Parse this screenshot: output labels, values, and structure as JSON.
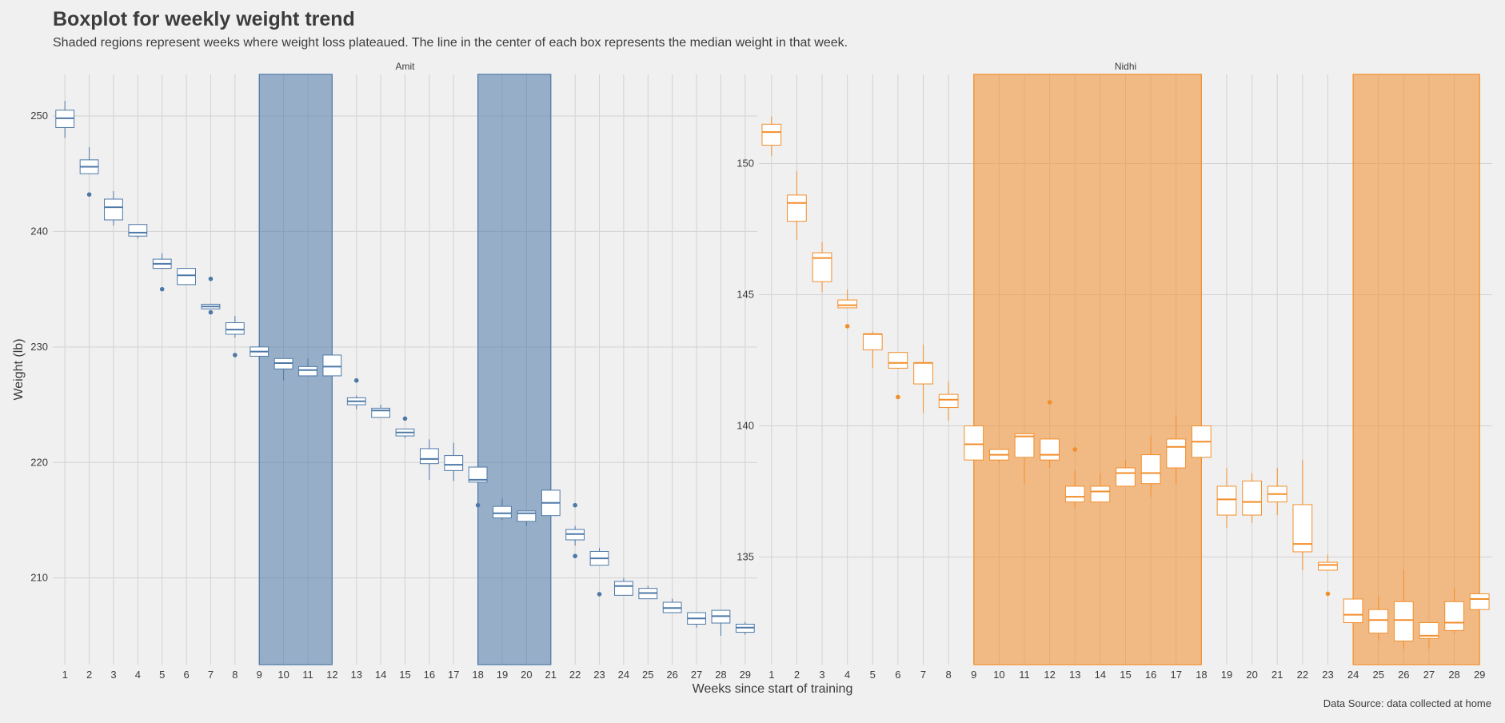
{
  "title": "Boxplot for weekly weight trend",
  "subtitle": "Shaded regions represent weeks where weight loss plateaued. The line in the center of each box represents the median weight in that week.",
  "caption": "Data Source: data collected at home",
  "chart_data": {
    "type": "boxplot",
    "xlabel": "Weeks since start of training",
    "ylabel": "Weight (lb)",
    "x_categories": [
      1,
      2,
      3,
      4,
      5,
      6,
      7,
      8,
      9,
      10,
      11,
      12,
      13,
      14,
      15,
      16,
      17,
      18,
      19,
      20,
      21,
      22,
      23,
      24,
      25,
      26,
      27,
      28,
      29
    ],
    "grid": true,
    "panels": [
      {
        "name": "Amit",
        "color": "#4e79a7",
        "shade_color": "#4e79a7",
        "ylim": [
          202.5,
          253.6
        ],
        "yticks": [
          210,
          220,
          230,
          240,
          250
        ],
        "plateaus": [
          [
            9,
            12
          ],
          [
            18,
            21
          ]
        ],
        "boxes": [
          {
            "week": 1,
            "q1": 249.0,
            "median": 249.8,
            "q3": 250.5,
            "lo": 248.1,
            "hi": 251.3,
            "outliers": []
          },
          {
            "week": 2,
            "q1": 245.0,
            "median": 245.6,
            "q3": 246.2,
            "lo": 245.0,
            "hi": 247.3,
            "outliers": [
              243.2
            ]
          },
          {
            "week": 3,
            "q1": 241.0,
            "median": 242.1,
            "q3": 242.8,
            "lo": 240.5,
            "hi": 243.5,
            "outliers": []
          },
          {
            "week": 4,
            "q1": 239.6,
            "median": 239.9,
            "q3": 240.6,
            "lo": 239.4,
            "hi": 240.6,
            "outliers": []
          },
          {
            "week": 5,
            "q1": 236.8,
            "median": 237.2,
            "q3": 237.6,
            "lo": 236.8,
            "hi": 238.1,
            "outliers": [
              235.0
            ]
          },
          {
            "week": 6,
            "q1": 235.4,
            "median": 236.2,
            "q3": 236.8,
            "lo": 235.4,
            "hi": 236.8,
            "outliers": []
          },
          {
            "week": 7,
            "q1": 233.3,
            "median": 233.5,
            "q3": 233.7,
            "lo": 233.3,
            "hi": 233.7,
            "outliers": [
              235.9,
              233.0
            ]
          },
          {
            "week": 8,
            "q1": 231.1,
            "median": 231.5,
            "q3": 232.1,
            "lo": 230.8,
            "hi": 232.7,
            "outliers": [
              229.3
            ]
          },
          {
            "week": 9,
            "q1": 229.2,
            "median": 229.6,
            "q3": 230.0,
            "lo": 228.9,
            "hi": 230.2,
            "outliers": []
          },
          {
            "week": 10,
            "q1": 228.1,
            "median": 228.6,
            "q3": 229.0,
            "lo": 227.1,
            "hi": 229.0,
            "outliers": []
          },
          {
            "week": 11,
            "q1": 227.5,
            "median": 228.0,
            "q3": 228.3,
            "lo": 227.5,
            "hi": 229.0,
            "outliers": []
          },
          {
            "week": 12,
            "q1": 227.5,
            "median": 228.3,
            "q3": 229.3,
            "lo": 227.5,
            "hi": 229.3,
            "outliers": []
          },
          {
            "week": 13,
            "q1": 225.0,
            "median": 225.3,
            "q3": 225.6,
            "lo": 224.6,
            "hi": 225.8,
            "outliers": [
              227.1
            ]
          },
          {
            "week": 14,
            "q1": 223.9,
            "median": 224.5,
            "q3": 224.7,
            "lo": 223.9,
            "hi": 225.0,
            "outliers": []
          },
          {
            "week": 15,
            "q1": 222.3,
            "median": 222.6,
            "q3": 222.9,
            "lo": 222.1,
            "hi": 222.9,
            "outliers": [
              223.8
            ]
          },
          {
            "week": 16,
            "q1": 219.9,
            "median": 220.3,
            "q3": 221.2,
            "lo": 218.5,
            "hi": 222.0,
            "outliers": []
          },
          {
            "week": 17,
            "q1": 219.3,
            "median": 219.8,
            "q3": 220.6,
            "lo": 218.4,
            "hi": 221.7,
            "outliers": []
          },
          {
            "week": 18,
            "q1": 218.3,
            "median": 218.5,
            "q3": 219.6,
            "lo": 218.3,
            "hi": 220.2,
            "outliers": [
              216.3
            ]
          },
          {
            "week": 19,
            "q1": 215.2,
            "median": 215.6,
            "q3": 216.2,
            "lo": 215.0,
            "hi": 216.9,
            "outliers": []
          },
          {
            "week": 20,
            "q1": 214.9,
            "median": 215.6,
            "q3": 215.8,
            "lo": 214.5,
            "hi": 215.8,
            "outliers": []
          },
          {
            "week": 21,
            "q1": 215.4,
            "median": 216.5,
            "q3": 217.6,
            "lo": 215.4,
            "hi": 217.6,
            "outliers": []
          },
          {
            "week": 22,
            "q1": 213.3,
            "median": 213.8,
            "q3": 214.2,
            "lo": 212.8,
            "hi": 214.5,
            "outliers": [
              216.3,
              211.9
            ]
          },
          {
            "week": 23,
            "q1": 211.1,
            "median": 211.7,
            "q3": 212.3,
            "lo": 211.1,
            "hi": 212.6,
            "outliers": [
              208.6
            ]
          },
          {
            "week": 24,
            "q1": 208.5,
            "median": 209.3,
            "q3": 209.7,
            "lo": 208.5,
            "hi": 210.0,
            "outliers": []
          },
          {
            "week": 25,
            "q1": 208.2,
            "median": 208.7,
            "q3": 209.1,
            "lo": 208.2,
            "hi": 209.3,
            "outliers": []
          },
          {
            "week": 26,
            "q1": 207.0,
            "median": 207.4,
            "q3": 207.9,
            "lo": 207.0,
            "hi": 208.2,
            "outliers": []
          },
          {
            "week": 27,
            "q1": 206.0,
            "median": 206.5,
            "q3": 207.0,
            "lo": 205.7,
            "hi": 207.0,
            "outliers": []
          },
          {
            "week": 28,
            "q1": 206.1,
            "median": 206.7,
            "q3": 207.2,
            "lo": 205.0,
            "hi": 207.2,
            "outliers": []
          },
          {
            "week": 29,
            "q1": 205.3,
            "median": 205.7,
            "q3": 206.0,
            "lo": 205.1,
            "hi": 206.2,
            "outliers": []
          }
        ]
      },
      {
        "name": "Nidhi",
        "color": "#f28e2b",
        "shade_color": "#f28e2b",
        "ylim": [
          130.9,
          153.4
        ],
        "yticks": [
          135,
          140,
          145,
          150
        ],
        "plateaus": [
          [
            9,
            18
          ],
          [
            24,
            29
          ]
        ],
        "boxes": [
          {
            "week": 1,
            "q1": 150.7,
            "median": 151.2,
            "q3": 151.5,
            "lo": 150.3,
            "hi": 151.8,
            "outliers": []
          },
          {
            "week": 2,
            "q1": 147.8,
            "median": 148.5,
            "q3": 148.8,
            "lo": 147.1,
            "hi": 149.7,
            "outliers": []
          },
          {
            "week": 3,
            "q1": 145.5,
            "median": 146.4,
            "q3": 146.6,
            "lo": 145.1,
            "hi": 147.0,
            "outliers": []
          },
          {
            "week": 4,
            "q1": 144.5,
            "median": 144.6,
            "q3": 144.8,
            "lo": 144.5,
            "hi": 145.2,
            "outliers": [
              143.8
            ]
          },
          {
            "week": 5,
            "q1": 142.9,
            "median": 143.5,
            "q3": 143.5,
            "lo": 142.2,
            "hi": 143.6,
            "outliers": []
          },
          {
            "week": 6,
            "q1": 142.2,
            "median": 142.4,
            "q3": 142.8,
            "lo": 142.2,
            "hi": 142.8,
            "outliers": [
              141.1
            ]
          },
          {
            "week": 7,
            "q1": 141.6,
            "median": 142.4,
            "q3": 142.4,
            "lo": 140.5,
            "hi": 143.1,
            "outliers": []
          },
          {
            "week": 8,
            "q1": 140.7,
            "median": 141.0,
            "q3": 141.2,
            "lo": 140.2,
            "hi": 141.7,
            "outliers": []
          },
          {
            "week": 9,
            "q1": 138.7,
            "median": 139.3,
            "q3": 140.0,
            "lo": 138.7,
            "hi": 140.0,
            "outliers": []
          },
          {
            "week": 10,
            "q1": 138.7,
            "median": 138.9,
            "q3": 139.1,
            "lo": 138.6,
            "hi": 139.1,
            "outliers": []
          },
          {
            "week": 11,
            "q1": 138.8,
            "median": 139.6,
            "q3": 139.7,
            "lo": 137.8,
            "hi": 139.7,
            "outliers": []
          },
          {
            "week": 12,
            "q1": 138.7,
            "median": 138.9,
            "q3": 139.5,
            "lo": 138.4,
            "hi": 139.5,
            "outliers": [
              140.9
            ]
          },
          {
            "week": 13,
            "q1": 137.1,
            "median": 137.3,
            "q3": 137.7,
            "lo": 136.9,
            "hi": 138.3,
            "outliers": [
              139.1
            ]
          },
          {
            "week": 14,
            "q1": 137.1,
            "median": 137.5,
            "q3": 137.7,
            "lo": 137.1,
            "hi": 138.2,
            "outliers": []
          },
          {
            "week": 15,
            "q1": 137.7,
            "median": 138.2,
            "q3": 138.4,
            "lo": 137.7,
            "hi": 138.7,
            "outliers": []
          },
          {
            "week": 16,
            "q1": 137.8,
            "median": 138.2,
            "q3": 138.9,
            "lo": 137.3,
            "hi": 139.6,
            "outliers": []
          },
          {
            "week": 17,
            "q1": 138.4,
            "median": 139.2,
            "q3": 139.5,
            "lo": 137.8,
            "hi": 140.4,
            "outliers": []
          },
          {
            "week": 18,
            "q1": 138.8,
            "median": 139.4,
            "q3": 140.0,
            "lo": 138.6,
            "hi": 140.0,
            "outliers": []
          },
          {
            "week": 19,
            "q1": 136.6,
            "median": 137.2,
            "q3": 137.7,
            "lo": 136.1,
            "hi": 138.4,
            "outliers": []
          },
          {
            "week": 20,
            "q1": 136.6,
            "median": 137.1,
            "q3": 137.9,
            "lo": 136.3,
            "hi": 138.2,
            "outliers": []
          },
          {
            "week": 21,
            "q1": 137.1,
            "median": 137.4,
            "q3": 137.7,
            "lo": 136.6,
            "hi": 138.4,
            "outliers": []
          },
          {
            "week": 22,
            "q1": 135.2,
            "median": 135.5,
            "q3": 137.0,
            "lo": 134.5,
            "hi": 138.7,
            "outliers": []
          },
          {
            "week": 23,
            "q1": 134.5,
            "median": 134.7,
            "q3": 134.8,
            "lo": 134.5,
            "hi": 135.1,
            "outliers": [
              133.6
            ]
          },
          {
            "week": 24,
            "q1": 132.5,
            "median": 132.8,
            "q3": 133.4,
            "lo": 132.3,
            "hi": 133.4,
            "outliers": []
          },
          {
            "week": 25,
            "q1": 132.1,
            "median": 132.6,
            "q3": 133.0,
            "lo": 131.8,
            "hi": 133.5,
            "outliers": []
          },
          {
            "week": 26,
            "q1": 131.8,
            "median": 132.6,
            "q3": 133.3,
            "lo": 131.5,
            "hi": 134.5,
            "outliers": []
          },
          {
            "week": 27,
            "q1": 131.9,
            "median": 132.0,
            "q3": 132.5,
            "lo": 131.5,
            "hi": 132.5,
            "outliers": []
          },
          {
            "week": 28,
            "q1": 132.2,
            "median": 132.5,
            "q3": 133.3,
            "lo": 132.1,
            "hi": 133.8,
            "outliers": []
          },
          {
            "week": 29,
            "q1": 133.0,
            "median": 133.4,
            "q3": 133.6,
            "lo": 133.0,
            "hi": 133.6,
            "outliers": []
          }
        ]
      }
    ]
  }
}
